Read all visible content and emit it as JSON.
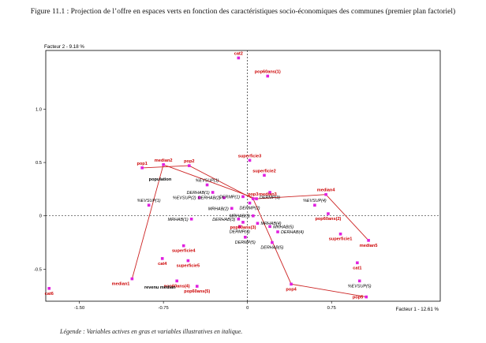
{
  "title": "Figure 11.1 : Projection de l’offre en espaces verts en fonction des caractéristiques socio-économiques des communes (premier plan factoriel)",
  "legend_note": "Légende : Variables actives en gras et variables illustratives en italique.",
  "colors": {
    "marker": "#e020e0",
    "active_label": "#cc0000",
    "line": "#cc2222"
  },
  "chart_data": {
    "type": "scatter",
    "xlabel": "Facteur 1 - 12.61 %",
    "ylabel": "Facteur 2 - 9.18 %",
    "xlim": [
      -1.8,
      1.72
    ],
    "ylim": [
      -0.8,
      1.55
    ],
    "xticks": [
      -1.5,
      -0.75,
      0,
      0.75
    ],
    "xtick_labels": [
      "-1.50",
      "-0.75",
      "0",
      "0.75"
    ],
    "yticks": [
      1.0,
      0.5,
      0,
      -0.5
    ],
    "ytick_labels": [
      "1.0",
      "0.5",
      "0",
      "-0.5"
    ],
    "points": [
      {
        "id": "cat2",
        "label": "cat2",
        "x": -0.08,
        "y": 1.48,
        "kind": "active",
        "pos": "above"
      },
      {
        "id": "pop60ans1",
        "label": "pop60ans(1)",
        "x": 0.18,
        "y": 1.31,
        "kind": "active",
        "pos": "above"
      },
      {
        "id": "pop1",
        "label": "pop1",
        "x": -0.94,
        "y": 0.45,
        "kind": "active",
        "pos": "above"
      },
      {
        "id": "median2",
        "label": "median2",
        "x": -0.75,
        "y": 0.48,
        "kind": "active",
        "pos": "above"
      },
      {
        "id": "pop2",
        "label": "pop2",
        "x": -0.52,
        "y": 0.47,
        "kind": "active",
        "pos": "above"
      },
      {
        "id": "superficie3",
        "label": "superficie3",
        "x": 0.02,
        "y": 0.52,
        "kind": "active",
        "pos": "above"
      },
      {
        "id": "superficie2",
        "label": "superficie2",
        "x": 0.15,
        "y": 0.38,
        "kind": "active",
        "pos": "above"
      },
      {
        "id": "pop3",
        "label": "pop3",
        "x": 0.05,
        "y": 0.16,
        "kind": "active",
        "pos": "above"
      },
      {
        "id": "median3",
        "label": "median3",
        "x": 0.08,
        "y": 0.16,
        "kind": "active",
        "pos": "aboveright"
      },
      {
        "id": "median4",
        "label": "median4",
        "x": 0.7,
        "y": 0.2,
        "kind": "active",
        "pos": "above"
      },
      {
        "id": "pop60ans2",
        "label": "pop60ans(2)",
        "x": 0.72,
        "y": 0.02,
        "kind": "active",
        "pos": "below"
      },
      {
        "id": "pop60ans3",
        "label": "pop60ans(3)",
        "x": -0.04,
        "y": -0.06,
        "kind": "active",
        "pos": "below"
      },
      {
        "id": "superficie1",
        "label": "superficie1",
        "x": 0.83,
        "y": -0.17,
        "kind": "active",
        "pos": "below"
      },
      {
        "id": "median5",
        "label": "median5",
        "x": 1.08,
        "y": -0.23,
        "kind": "active",
        "pos": "below"
      },
      {
        "id": "cat1",
        "label": "cat1",
        "x": 0.98,
        "y": -0.44,
        "kind": "active",
        "pos": "below"
      },
      {
        "id": "pop5",
        "label": "pop5",
        "x": 1.06,
        "y": -0.76,
        "kind": "active",
        "pos": "left"
      },
      {
        "id": "pop4",
        "label": "pop4",
        "x": 0.39,
        "y": -0.64,
        "kind": "active",
        "pos": "below"
      },
      {
        "id": "superficie4",
        "label": "superficie4",
        "x": -0.57,
        "y": -0.28,
        "kind": "active",
        "pos": "below"
      },
      {
        "id": "superficie5",
        "label": "superficie5",
        "x": -0.53,
        "y": -0.42,
        "kind": "active",
        "pos": "below"
      },
      {
        "id": "cat4",
        "label": "cat4",
        "x": -0.76,
        "y": -0.4,
        "kind": "active",
        "pos": "below"
      },
      {
        "id": "pop60ans4",
        "label": "pop60ans(4)",
        "x": -0.63,
        "y": -0.61,
        "kind": "active",
        "pos": "below"
      },
      {
        "id": "pop60ans5",
        "label": "pop60ans(5)",
        "x": -0.45,
        "y": -0.66,
        "kind": "active",
        "pos": "below"
      },
      {
        "id": "median1",
        "label": "median1",
        "x": -1.03,
        "y": -0.59,
        "kind": "active",
        "pos": "belowleft"
      },
      {
        "id": "cat6",
        "label": "cat6",
        "x": -1.77,
        "y": -0.68,
        "kind": "active",
        "pos": "below"
      },
      {
        "id": "evsup1_a",
        "label": "%EVSUP(1)",
        "x": -0.88,
        "y": 0.1,
        "kind": "illustrative",
        "pos": "above"
      },
      {
        "id": "evsup1_b",
        "label": "%EVSUP(1)",
        "x": -0.36,
        "y": 0.29,
        "kind": "illustrative",
        "pos": "above"
      },
      {
        "id": "evsup2",
        "label": "%EVSUP(2)",
        "x": -0.43,
        "y": 0.17,
        "kind": "illustrative",
        "pos": "left"
      },
      {
        "id": "evsup4",
        "label": "%EVSUP(4)",
        "x": 0.6,
        "y": 0.1,
        "kind": "illustrative",
        "pos": "above"
      },
      {
        "id": "evsup5",
        "label": "%EVSUP(5)",
        "x": 1.0,
        "y": -0.61,
        "kind": "illustrative",
        "pos": "below"
      },
      {
        "id": "derhab1",
        "label": "DERHAB(1)",
        "x": -0.31,
        "y": 0.22,
        "kind": "illustrative",
        "pos": "left"
      },
      {
        "id": "derhab2",
        "label": "DERHAB(2)",
        "x": -0.21,
        "y": 0.17,
        "kind": "illustrative",
        "pos": "left"
      },
      {
        "id": "derhab3",
        "label": "DERHAB(3)",
        "x": -0.08,
        "y": -0.03,
        "kind": "illustrative",
        "pos": "left"
      },
      {
        "id": "derhab4",
        "label": "DERHAB(4)",
        "x": 0.27,
        "y": -0.15,
        "kind": "illustrative",
        "pos": "right"
      },
      {
        "id": "derhab5",
        "label": "DERHAB(5)",
        "x": 0.22,
        "y": -0.25,
        "kind": "illustrative",
        "pos": "below"
      },
      {
        "id": "dermp1",
        "label": "DERMP(1)",
        "x": -0.04,
        "y": 0.18,
        "kind": "illustrative",
        "pos": "left"
      },
      {
        "id": "dermp2",
        "label": "DERMP(2)",
        "x": 0.02,
        "y": 0.12,
        "kind": "illustrative",
        "pos": "below"
      },
      {
        "id": "dermp3",
        "label": "DERMP(3)",
        "x": 0.2,
        "y": 0.22,
        "kind": "illustrative",
        "pos": "below"
      },
      {
        "id": "dermp4",
        "label": "DERMP(4)",
        "x": -0.07,
        "y": -0.1,
        "kind": "illustrative",
        "pos": "below"
      },
      {
        "id": "dermp5",
        "label": "DERMP(5)",
        "x": -0.02,
        "y": -0.2,
        "kind": "illustrative",
        "pos": "below"
      },
      {
        "id": "mrhab1",
        "label": "MRHAB(1)",
        "x": -0.5,
        "y": -0.03,
        "kind": "illustrative",
        "pos": "left"
      },
      {
        "id": "mrhab2",
        "label": "MRHAB(2)",
        "x": -0.14,
        "y": 0.07,
        "kind": "illustrative",
        "pos": "left"
      },
      {
        "id": "mrhab3",
        "label": "MRHAB(3)",
        "x": 0.05,
        "y": 0.0,
        "kind": "illustrative",
        "pos": "left"
      },
      {
        "id": "mrhab4",
        "label": "MRHAB(4)",
        "x": 0.09,
        "y": -0.07,
        "kind": "illustrative",
        "pos": "right"
      },
      {
        "id": "mrhab5",
        "label": "MRHAB(5)",
        "x": 0.2,
        "y": -0.1,
        "kind": "illustrative",
        "pos": "right"
      }
    ],
    "trajectories": [
      {
        "name": "population",
        "points": [
          "pop1",
          "pop2",
          "pop3",
          "pop4",
          "pop5"
        ]
      },
      {
        "name": "revenu médian",
        "points": [
          "median1",
          "median2",
          "median3",
          "median4",
          "median5"
        ]
      }
    ],
    "annotations": [
      {
        "text": "population",
        "x": -0.88,
        "y": 0.33
      },
      {
        "text": "revenu médian",
        "x": -0.92,
        "y": -0.68
      }
    ]
  }
}
